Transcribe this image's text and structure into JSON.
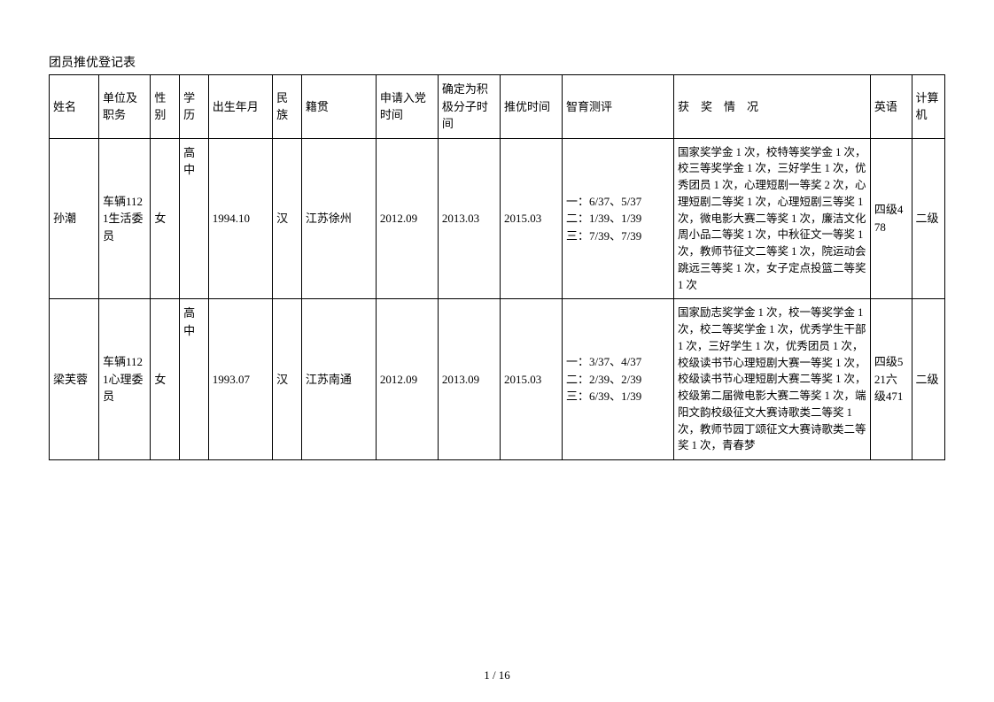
{
  "title": "团员推优登记表",
  "footer": "1  /  16",
  "columns": [
    "姓名",
    "单位及职务",
    "性别",
    "学历",
    "出生年月",
    "民族",
    "籍贯",
    "申请入党时间",
    "确定为积极分子时间",
    "推优时间",
    "智育测评",
    "获　奖　情　况",
    "英语",
    "计算机"
  ],
  "rows": [
    {
      "name": "孙潮",
      "unit": "车辆1121生活委员",
      "sex": "女",
      "edu": "高中",
      "birth": "1994.10",
      "ethnic": "汉",
      "native": "江苏徐州",
      "apply": "2012.09",
      "active": "2013.03",
      "rectime": "2015.03",
      "eval": "一：6/37、5/37\n二：1/39、1/39\n三：7/39、7/39",
      "awards": "国家奖学金 1 次，校特等奖学金 1 次，校三等奖学金 1 次，三好学生 1 次，优秀团员 1 次，心理短剧一等奖 2 次，心理短剧二等奖 1 次，心理短剧三等奖 1 次，微电影大赛二等奖 1 次，廉洁文化周小品二等奖 1 次，中秋征文一等奖 1 次，教师节征文二等奖 1 次，院运动会跳远三等奖 1 次，女子定点投篮二等奖 1 次",
      "english": "四级478",
      "computer": "二级"
    },
    {
      "name": "梁芙蓉",
      "unit": "车辆1121心理委员",
      "sex": "女",
      "edu": "高中",
      "birth": "1993.07",
      "ethnic": "汉",
      "native": "江苏南通",
      "apply": "2012.09",
      "active": "2013.09",
      "rectime": "2015.03",
      "eval": "一：3/37、4/37\n二：2/39、2/39\n三：6/39、1/39",
      "awards": "国家励志奖学金 1 次，校一等奖学金 1 次，校二等奖学金 1 次，优秀学生干部 1 次，三好学生 1 次，优秀团员 1 次，校级读书节心理短剧大赛一等奖 1 次，校级读书节心理短剧大赛二等奖 1 次，校级第二届微电影大赛二等奖 1 次，端阳文韵校级征文大赛诗歌类二等奖 1 次，教师节园丁颂征文大赛诗歌类二等奖 1 次，青春梦",
      "english": "四级521六级471",
      "computer": "二级"
    }
  ]
}
